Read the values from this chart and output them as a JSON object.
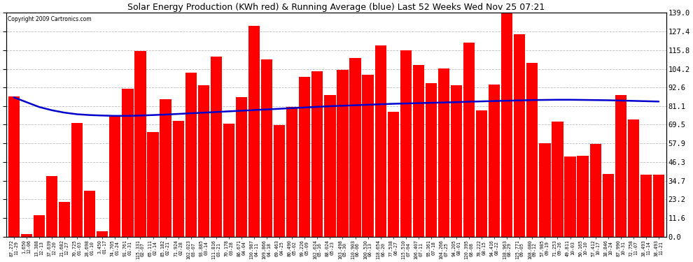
{
  "title": "Solar Energy Production (KWh red) & Running Average (blue) Last 52 Weeks Wed Nov 25 07:21",
  "copyright": "Copyright 2009 Cartronics.com",
  "bar_color": "#ff0000",
  "avg_line_color": "#0000cc",
  "background_color": "#ffffff",
  "grid_color": "#bbbbbb",
  "ylim": [
    0,
    139.0
  ],
  "yticks": [
    0.0,
    11.6,
    23.2,
    34.7,
    46.3,
    57.9,
    69.5,
    81.1,
    92.6,
    104.2,
    115.8,
    127.4,
    139.0
  ],
  "categories": [
    "11-29",
    "12-06",
    "12-13",
    "12-20",
    "12-27",
    "01-03",
    "01-10",
    "01-17",
    "01-24",
    "01-31",
    "02-07",
    "02-14",
    "02-21",
    "02-28",
    "03-07",
    "03-14",
    "03-21",
    "03-28",
    "04-04",
    "04-11",
    "04-18",
    "04-25",
    "05-02",
    "05-09",
    "05-16",
    "05-23",
    "05-30",
    "06-06",
    "06-13",
    "06-20",
    "06-27",
    "07-04",
    "07-11",
    "07-18",
    "07-25",
    "08-01",
    "08-08",
    "08-15",
    "08-22",
    "08-29",
    "09-05",
    "09-12",
    "09-19",
    "09-26",
    "10-03",
    "10-10",
    "10-17",
    "10-24",
    "10-31",
    "11-07",
    "11-14",
    "11-21"
  ],
  "values": [
    87.272,
    1.65,
    13.388,
    37.639,
    21.682,
    70.725,
    28.698,
    3.45,
    74.705,
    91.761,
    115.331,
    65.111,
    85.182,
    71.924,
    102.023,
    93.885,
    111.816,
    70.178,
    86.671,
    130.987,
    109.866,
    69.463,
    80.49,
    99.226,
    102.624,
    88.024,
    103.498,
    110.903,
    100.53,
    118.654,
    77.538,
    115.51,
    106.407,
    95.361,
    104.266,
    94.205,
    120.395,
    78.222,
    94.416,
    138.963,
    125.771,
    108.08,
    57.985,
    71.253,
    49.811,
    50.165,
    57.412,
    38.846,
    87.99,
    72.758,
    38.493,
    38.493
  ],
  "avg": [
    86.5,
    83.5,
    80.5,
    78.5,
    77.0,
    76.0,
    75.5,
    75.2,
    75.0,
    75.0,
    75.2,
    75.5,
    75.8,
    76.2,
    76.6,
    77.0,
    77.4,
    77.8,
    78.2,
    78.6,
    79.0,
    79.4,
    79.8,
    80.2,
    80.6,
    81.0,
    81.3,
    81.6,
    81.9,
    82.2,
    82.5,
    82.7,
    82.9,
    83.1,
    83.3,
    83.5,
    83.8,
    84.0,
    84.2,
    84.4,
    84.6,
    84.8,
    84.9,
    85.0,
    85.0,
    84.9,
    84.8,
    84.7,
    84.5,
    84.3,
    84.1,
    83.9
  ]
}
